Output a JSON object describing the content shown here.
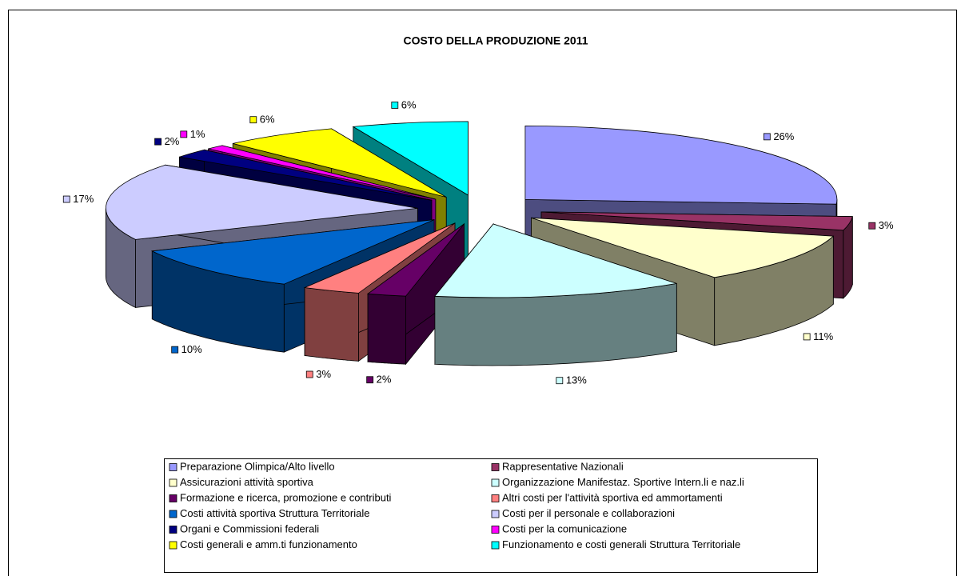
{
  "chart_data": {
    "type": "pie3d",
    "title": "COSTO DELLA PRODUZIONE 2011",
    "categories": [
      "Preparazione Olimpica/Alto livello",
      "Rappresentative Nazionali",
      "Assicurazioni attività sportiva",
      "Organizzazione Manifestaz. Sportive Intern.li e naz.li",
      "Formazione e ricerca, promozione e contributi",
      "Altri costi per l'attività sportiva ed ammortamenti",
      "Costi attività sportiva  Struttura Territoriale",
      "Costi per il personale e collaborazioni",
      "Organi e Commissioni federali",
      "Costi per la comunicazione",
      "Costi generali e amm.ti funzionamento",
      "Funzionamento e costi generali Struttura Territoriale"
    ],
    "values": [
      26,
      3,
      11,
      13,
      2,
      3,
      10,
      17,
      2,
      1,
      6,
      6
    ],
    "value_labels": [
      "26%",
      "3%",
      "11%",
      "13%",
      "2%",
      "3%",
      "10%",
      "17%",
      "2%",
      "1%",
      "6%",
      "6%"
    ],
    "colors": [
      "#9999FF",
      "#993366",
      "#FFFFCC",
      "#CCFFFF",
      "#660066",
      "#FF8080",
      "#0066CC",
      "#CCCCFF",
      "#000080",
      "#FF00FF",
      "#FFFF00",
      "#00FFFF"
    ],
    "legend": "bottom"
  }
}
